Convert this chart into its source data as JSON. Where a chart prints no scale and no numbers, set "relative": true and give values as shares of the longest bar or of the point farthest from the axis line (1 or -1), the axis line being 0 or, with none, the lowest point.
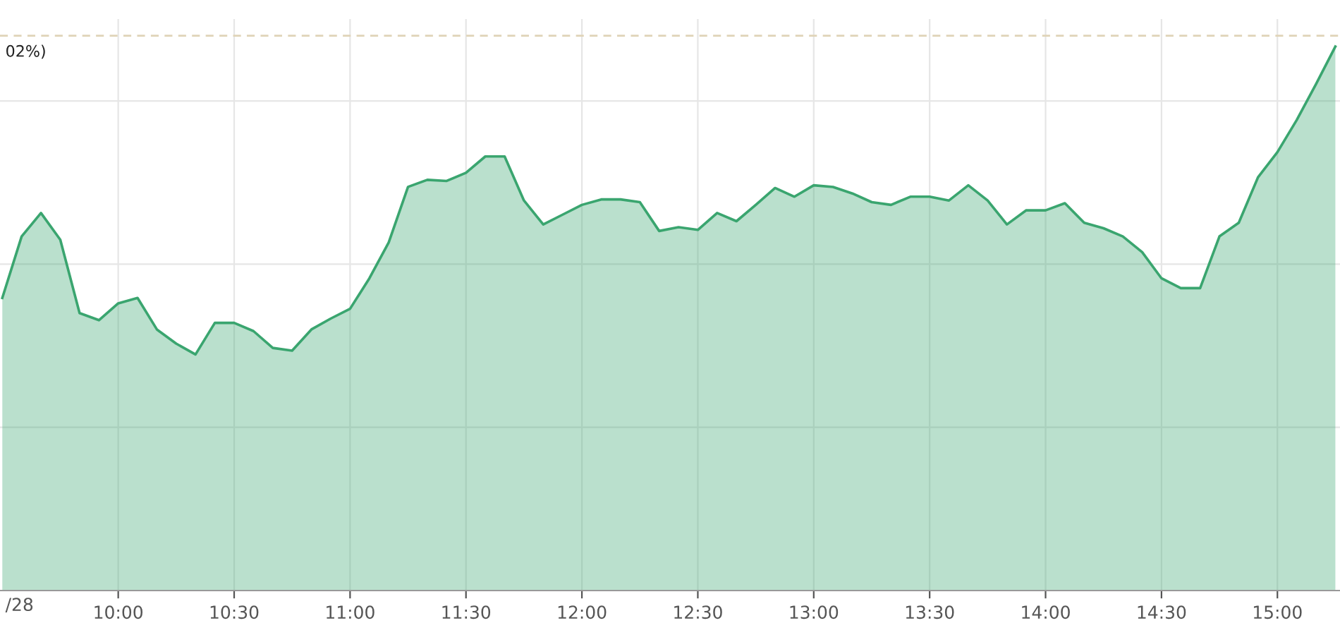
{
  "chart_data": {
    "type": "area",
    "relative": true,
    "x": [
      9.5,
      9.5833,
      9.6667,
      9.75,
      9.8333,
      9.9167,
      10.0,
      10.0833,
      10.1667,
      10.25,
      10.3333,
      10.4167,
      10.5,
      10.5833,
      10.6667,
      10.75,
      10.8333,
      10.9167,
      11.0,
      11.0833,
      11.1667,
      11.25,
      11.3333,
      11.4167,
      11.5,
      11.5833,
      11.6667,
      11.75,
      11.8333,
      11.9167,
      12.0,
      12.0833,
      12.1667,
      12.25,
      12.3333,
      12.4167,
      12.5,
      12.5833,
      12.6667,
      12.75,
      12.8333,
      12.9167,
      13.0,
      13.0833,
      13.1667,
      13.25,
      13.3333,
      13.4167,
      13.5,
      13.5833,
      13.6667,
      13.75,
      13.8333,
      13.9167,
      14.0,
      14.0833,
      14.1667,
      14.25,
      14.3333,
      14.4167,
      14.5,
      14.5833,
      14.6667,
      14.75,
      14.8333,
      14.9167,
      15.0,
      15.0833,
      15.1667,
      15.25
    ],
    "series": [
      {
        "color": "#3aa56f",
        "values": [
          0.538,
          0.651,
          0.694,
          0.645,
          0.51,
          0.497,
          0.528,
          0.538,
          0.48,
          0.454,
          0.434,
          0.492,
          0.492,
          0.477,
          0.446,
          0.441,
          0.48,
          0.5,
          0.518,
          0.574,
          0.64,
          0.742,
          0.755,
          0.753,
          0.768,
          0.798,
          0.798,
          0.717,
          0.673,
          0.691,
          0.709,
          0.719,
          0.719,
          0.714,
          0.661,
          0.668,
          0.663,
          0.694,
          0.679,
          0.709,
          0.74,
          0.724,
          0.745,
          0.742,
          0.73,
          0.714,
          0.709,
          0.724,
          0.724,
          0.717,
          0.745,
          0.717,
          0.673,
          0.699,
          0.699,
          0.712,
          0.676,
          0.666,
          0.651,
          0.622,
          0.574,
          0.556,
          0.556,
          0.651,
          0.676,
          0.76,
          0.806,
          0.865,
          0.931,
          1.0
        ]
      }
    ],
    "xlim": [
      9.49,
      15.27
    ],
    "xticks": [
      {
        "value": 10,
        "label": "10:00"
      },
      {
        "value": 10.5,
        "label": "10:30"
      },
      {
        "value": 11,
        "label": "11:00"
      },
      {
        "value": 11.5,
        "label": "11:30"
      },
      {
        "value": 12,
        "label": "12:00"
      },
      {
        "value": 12.5,
        "label": "12:30"
      },
      {
        "value": 13,
        "label": "13:00"
      },
      {
        "value": 13.5,
        "label": "13:30"
      },
      {
        "value": 14,
        "label": "14:00"
      },
      {
        "value": 14.5,
        "label": "14:30"
      },
      {
        "value": 15,
        "label": "15:00"
      }
    ],
    "ref_lines": [
      {
        "axis": "y",
        "value": 1.02,
        "color": "#e0d4b8",
        "line_style": "dashed"
      }
    ],
    "annotations": [
      "/28",
      "02%)"
    ],
    "grid": true
  }
}
